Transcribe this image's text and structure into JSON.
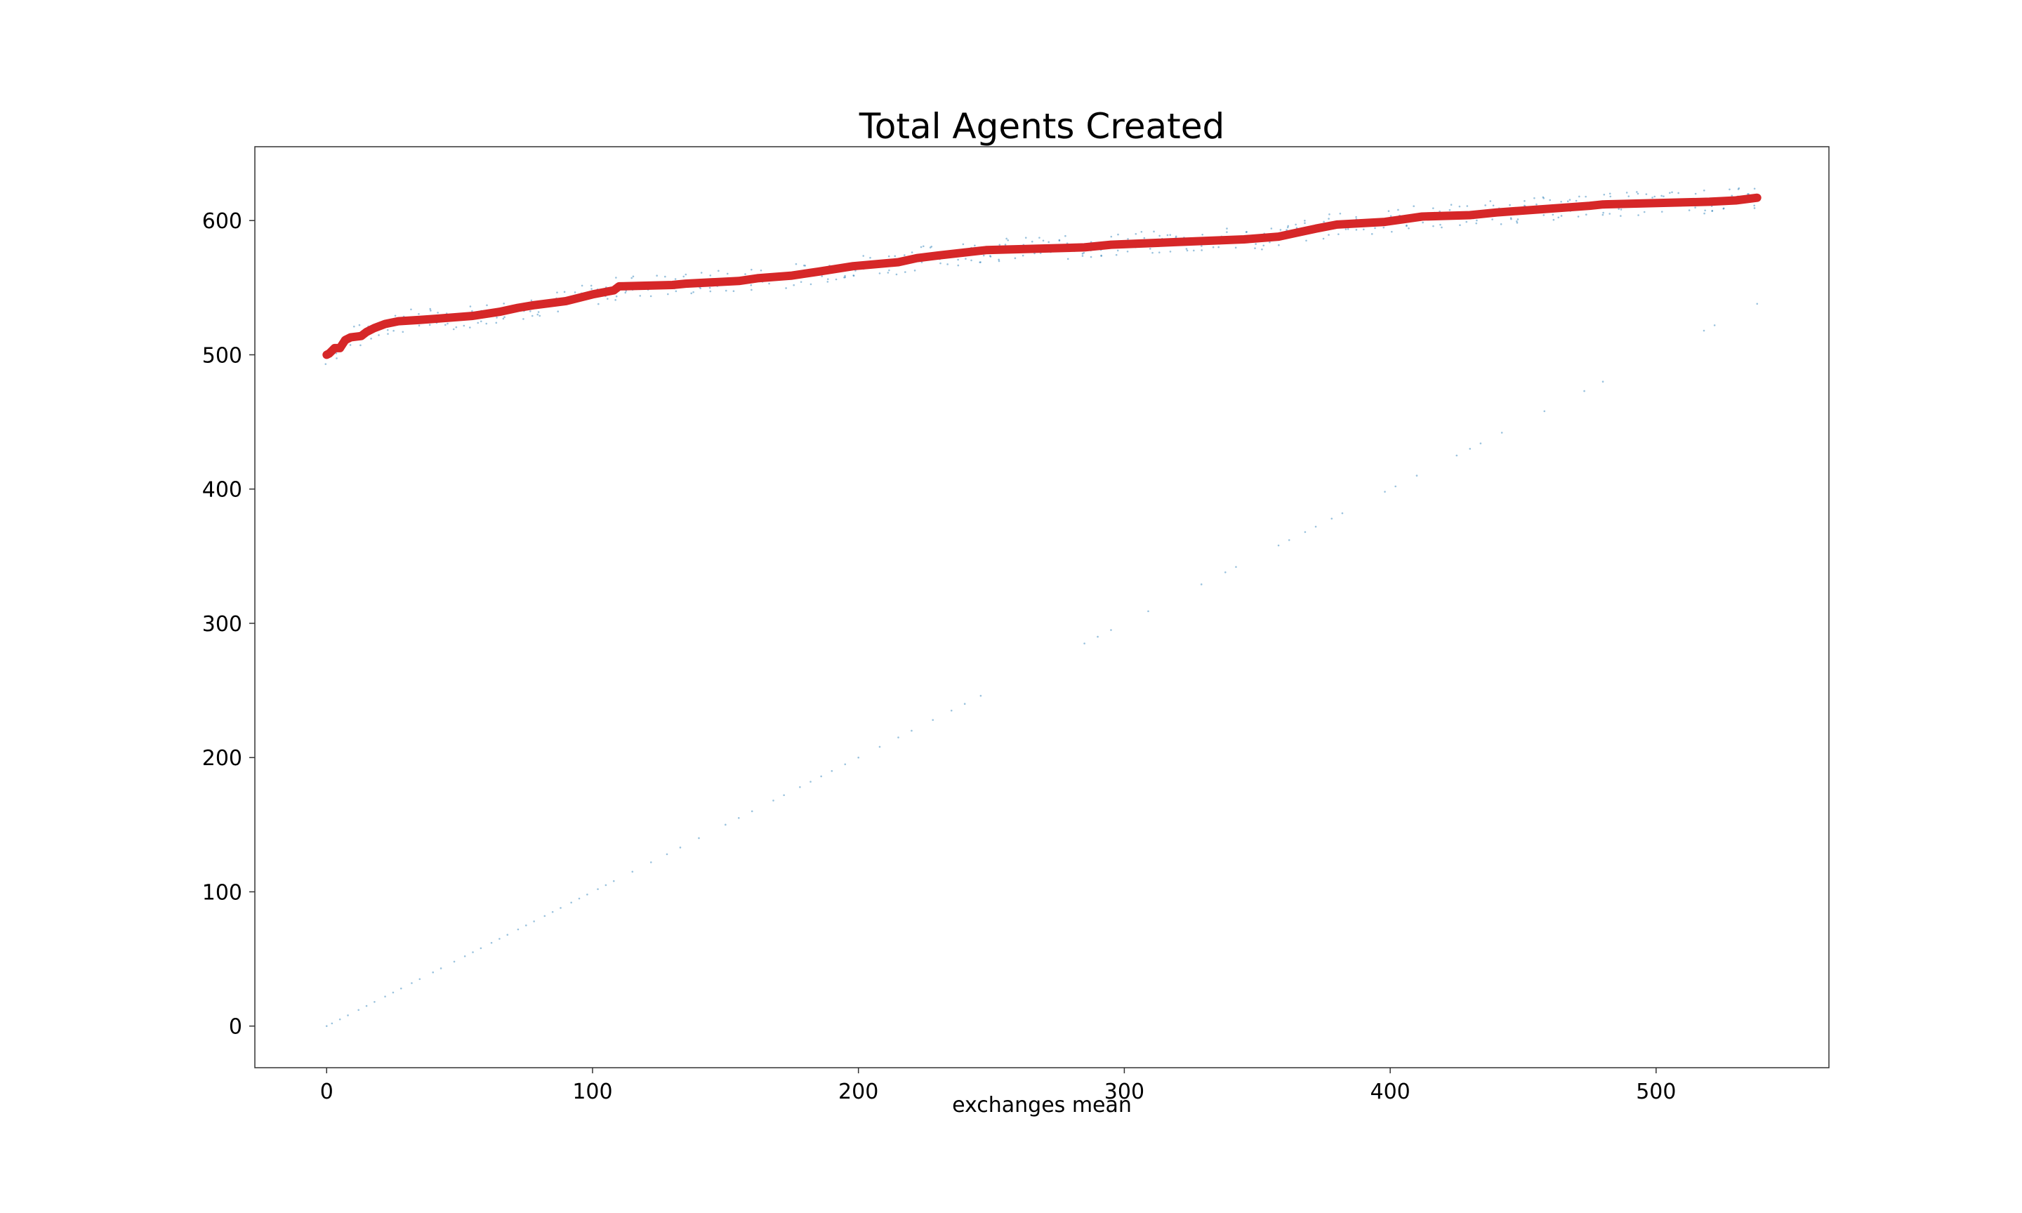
{
  "chart_data": {
    "type": "line",
    "title": "Total Agents Created",
    "xlabel": "exchanges mean",
    "ylabel": "",
    "xlim": [
      -27,
      565
    ],
    "ylim": [
      -31,
      655
    ],
    "x_ticks": [
      0,
      100,
      200,
      300,
      400,
      500
    ],
    "y_ticks": [
      0,
      100,
      200,
      300,
      400,
      500,
      600
    ],
    "grid": false,
    "legend": "none",
    "colors": {
      "mean_line": "#d62728",
      "scatter": "#1f77b4"
    },
    "series": [
      {
        "values_xy": [
          [
            0,
            500
          ],
          [
            1,
            501
          ],
          [
            2,
            503
          ],
          [
            3,
            505
          ],
          [
            5,
            505
          ],
          [
            6,
            508
          ],
          [
            7,
            511
          ],
          [
            9,
            513
          ],
          [
            13,
            514
          ],
          [
            15,
            517
          ],
          [
            18,
            520
          ],
          [
            22,
            523
          ],
          [
            27,
            525
          ],
          [
            35,
            526
          ],
          [
            42,
            527
          ],
          [
            55,
            529
          ],
          [
            65,
            532
          ],
          [
            72,
            535
          ],
          [
            78,
            537
          ],
          [
            90,
            540
          ],
          [
            100,
            545
          ],
          [
            108,
            548
          ],
          [
            110,
            551
          ],
          [
            130,
            552
          ],
          [
            135,
            553
          ],
          [
            155,
            555
          ],
          [
            162,
            557
          ],
          [
            175,
            559
          ],
          [
            185,
            562
          ],
          [
            198,
            566
          ],
          [
            215,
            569
          ],
          [
            222,
            572
          ],
          [
            230,
            574
          ],
          [
            248,
            578
          ],
          [
            285,
            580
          ],
          [
            295,
            582
          ],
          [
            320,
            584
          ],
          [
            345,
            586
          ],
          [
            358,
            588
          ],
          [
            365,
            591
          ],
          [
            372,
            594
          ],
          [
            380,
            597
          ],
          [
            398,
            599
          ],
          [
            405,
            601
          ],
          [
            412,
            603
          ],
          [
            430,
            604
          ],
          [
            440,
            606
          ],
          [
            475,
            611
          ],
          [
            480,
            612
          ],
          [
            520,
            614
          ],
          [
            530,
            615
          ],
          [
            538,
            617
          ]
        ]
      },
      {
        "values_xy": [
          [
            0,
            0
          ],
          [
            2,
            2
          ],
          [
            5,
            5
          ],
          [
            8,
            8
          ],
          [
            12,
            12
          ],
          [
            15,
            15
          ],
          [
            18,
            18
          ],
          [
            22,
            22
          ],
          [
            25,
            25
          ],
          [
            28,
            28
          ],
          [
            32,
            32
          ],
          [
            35,
            35
          ],
          [
            40,
            40
          ],
          [
            43,
            43
          ],
          [
            48,
            48
          ],
          [
            52,
            52
          ],
          [
            55,
            55
          ],
          [
            58,
            58
          ],
          [
            62,
            62
          ],
          [
            65,
            65
          ],
          [
            68,
            68
          ],
          [
            72,
            72
          ],
          [
            75,
            75
          ],
          [
            78,
            78
          ],
          [
            82,
            82
          ],
          [
            85,
            85
          ],
          [
            88,
            88
          ],
          [
            92,
            92
          ],
          [
            95,
            95
          ],
          [
            98,
            98
          ],
          [
            102,
            102
          ],
          [
            105,
            105
          ],
          [
            108,
            108
          ],
          [
            115,
            115
          ],
          [
            122,
            122
          ],
          [
            128,
            128
          ],
          [
            133,
            133
          ],
          [
            140,
            140
          ],
          [
            150,
            150
          ],
          [
            155,
            155
          ],
          [
            160,
            160
          ],
          [
            168,
            168
          ],
          [
            172,
            172
          ],
          [
            178,
            178
          ],
          [
            182,
            182
          ],
          [
            186,
            186
          ],
          [
            190,
            190
          ],
          [
            195,
            195
          ],
          [
            200,
            200
          ],
          [
            208,
            208
          ],
          [
            215,
            215
          ],
          [
            220,
            220
          ],
          [
            228,
            228
          ],
          [
            235,
            235
          ],
          [
            240,
            240
          ],
          [
            246,
            246
          ],
          [
            285,
            285
          ],
          [
            290,
            290
          ],
          [
            295,
            295
          ],
          [
            309,
            309
          ],
          [
            329,
            329
          ],
          [
            338,
            338
          ],
          [
            342,
            342
          ],
          [
            358,
            358
          ],
          [
            362,
            362
          ],
          [
            368,
            368
          ],
          [
            372,
            372
          ],
          [
            378,
            378
          ],
          [
            382,
            382
          ],
          [
            398,
            398
          ],
          [
            402,
            402
          ],
          [
            410,
            410
          ],
          [
            425,
            425
          ],
          [
            430,
            430
          ],
          [
            434,
            434
          ],
          [
            442,
            442
          ],
          [
            458,
            458
          ],
          [
            473,
            473
          ],
          [
            480,
            480
          ],
          [
            518,
            518
          ],
          [
            522,
            522
          ],
          [
            538,
            538
          ]
        ]
      }
    ]
  }
}
